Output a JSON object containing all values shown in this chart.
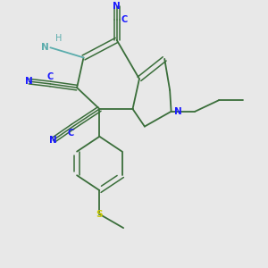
{
  "bg_color": "#e8e8e8",
  "bond_color": "#3a6e3a",
  "N_color": "#1a1aff",
  "S_color": "#c8c800",
  "NH2_H_color": "#5aacac",
  "NH2_N_color": "#5aacac",
  "figsize": [
    3.0,
    3.0
  ],
  "dpi": 100,
  "xlim": [
    0.0,
    1.0
  ],
  "ylim": [
    1.05,
    0.0
  ],
  "lw_single": 1.3,
  "lw_double": 1.1,
  "label_fontsize": 7.5,
  "label_fontsize_small": 7.0
}
